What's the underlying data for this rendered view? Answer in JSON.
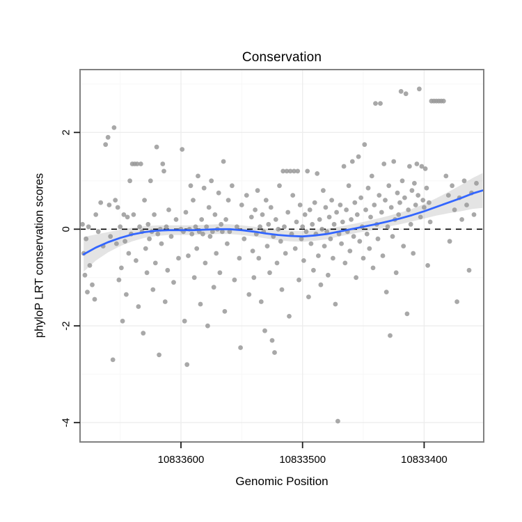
{
  "chart_data": {
    "type": "scatter",
    "title": "Conservation",
    "x_axis": {
      "label": "Genomic Position",
      "ticks": [
        10833600,
        10833500,
        10833400
      ],
      "minor_ticks": [
        10833650,
        10833550,
        10833450
      ],
      "range": [
        10833683,
        10833351
      ],
      "direction": "decreasing-left-to-right"
    },
    "y_axis": {
      "label": "phyloP LRT conservation scores",
      "ticks": [
        2,
        0,
        -2,
        -4
      ],
      "minor_ticks": [
        3,
        1,
        -1,
        -3
      ],
      "range": [
        3.3,
        -4.4
      ]
    },
    "reference_line": {
      "y": 0,
      "style": "dashed",
      "color": "#000000"
    },
    "smooth": {
      "name": "loess-smooth-with-confidence-band",
      "x": [
        10833680,
        10833670,
        10833660,
        10833650,
        10833640,
        10833630,
        10833620,
        10833610,
        10833600,
        10833590,
        10833580,
        10833570,
        10833560,
        10833550,
        10833540,
        10833530,
        10833520,
        10833510,
        10833500,
        10833490,
        10833480,
        10833470,
        10833460,
        10833450,
        10833440,
        10833430,
        10833420,
        10833410,
        10833400,
        10833390,
        10833380,
        10833370,
        10833360,
        10833352
      ],
      "y": [
        -0.52,
        -0.38,
        -0.27,
        -0.18,
        -0.11,
        -0.06,
        -0.03,
        -0.02,
        -0.02,
        -0.02,
        -0.01,
        0.0,
        0.0,
        -0.02,
        -0.05,
        -0.09,
        -0.12,
        -0.14,
        -0.15,
        -0.13,
        -0.1,
        -0.05,
        0.0,
        0.05,
        0.1,
        0.16,
        0.22,
        0.29,
        0.37,
        0.46,
        0.55,
        0.64,
        0.74,
        0.8
      ],
      "ci_half": [
        0.36,
        0.27,
        0.21,
        0.17,
        0.14,
        0.12,
        0.11,
        0.1,
        0.1,
        0.1,
        0.1,
        0.1,
        0.1,
        0.1,
        0.1,
        0.1,
        0.11,
        0.11,
        0.11,
        0.11,
        0.11,
        0.1,
        0.1,
        0.1,
        0.11,
        0.11,
        0.12,
        0.13,
        0.15,
        0.18,
        0.22,
        0.27,
        0.32,
        0.36
      ]
    },
    "points": [
      [
        10833681,
        0.1
      ],
      [
        10833680,
        -0.5
      ],
      [
        10833679,
        -0.95
      ],
      [
        10833678,
        -0.2
      ],
      [
        10833677,
        -1.3
      ],
      [
        10833676,
        0.05
      ],
      [
        10833675,
        -0.75
      ],
      [
        10833673,
        -1.15
      ],
      [
        10833671,
        -1.45
      ],
      [
        10833670,
        0.3
      ],
      [
        10833668,
        -0.05
      ],
      [
        10833666,
        0.55
      ],
      [
        10833664,
        -0.35
      ],
      [
        10833662,
        1.75
      ],
      [
        10833660,
        1.9
      ],
      [
        10833659,
        0.5
      ],
      [
        10833658,
        -0.15
      ],
      [
        10833656,
        -2.7
      ],
      [
        10833655,
        2.1
      ],
      [
        10833654,
        0.6
      ],
      [
        10833653,
        -0.3
      ],
      [
        10833652,
        0.45
      ],
      [
        10833651,
        -1.05
      ],
      [
        10833650,
        0.05
      ],
      [
        10833649,
        -0.8
      ],
      [
        10833648,
        -1.9
      ],
      [
        10833647,
        0.3
      ],
      [
        10833646,
        -0.25
      ],
      [
        10833645,
        -1.35
      ],
      [
        10833644,
        0.25
      ],
      [
        10833643,
        -0.5
      ],
      [
        10833642,
        1.0
      ],
      [
        10833641,
        -0.1
      ],
      [
        10833640,
        1.35
      ],
      [
        10833639,
        0.3
      ],
      [
        10833638,
        1.35
      ],
      [
        10833637,
        -0.65
      ],
      [
        10833636,
        1.35
      ],
      [
        10833635,
        -1.6
      ],
      [
        10833634,
        0.05
      ],
      [
        10833633,
        1.35
      ],
      [
        10833632,
        -0.05
      ],
      [
        10833631,
        -2.15
      ],
      [
        10833630,
        0.6
      ],
      [
        10833629,
        -0.4
      ],
      [
        10833628,
        -0.9
      ],
      [
        10833627,
        0.1
      ],
      [
        10833626,
        -0.2
      ],
      [
        10833625,
        1.0
      ],
      [
        10833624,
        -0.05
      ],
      [
        10833623,
        -1.25
      ],
      [
        10833622,
        0.3
      ],
      [
        10833621,
        -0.7
      ],
      [
        10833620,
        1.7
      ],
      [
        10833619,
        -0.1
      ],
      [
        10833618,
        -2.6
      ],
      [
        10833617,
        0.0
      ],
      [
        10833616,
        -0.3
      ],
      [
        10833615,
        1.35
      ],
      [
        10833614,
        1.2
      ],
      [
        10833613,
        -1.5
      ],
      [
        10833612,
        0.05
      ],
      [
        10833611,
        -0.85
      ],
      [
        10833610,
        0.4
      ],
      [
        10833608,
        -0.15
      ],
      [
        10833606,
        -1.1
      ],
      [
        10833604,
        0.2
      ],
      [
        10833602,
        -0.6
      ],
      [
        10833600,
        0.0
      ],
      [
        10833599,
        1.65
      ],
      [
        10833598,
        -0.05
      ],
      [
        10833597,
        -1.9
      ],
      [
        10833596,
        0.35
      ],
      [
        10833595,
        -2.8
      ],
      [
        10833594,
        -0.55
      ],
      [
        10833593,
        0.0
      ],
      [
        10833592,
        0.9
      ],
      [
        10833591,
        -0.1
      ],
      [
        10833590,
        0.6
      ],
      [
        10833589,
        -1.0
      ],
      [
        10833588,
        0.05
      ],
      [
        10833587,
        -0.4
      ],
      [
        10833586,
        1.1
      ],
      [
        10833585,
        -0.05
      ],
      [
        10833584,
        -1.55
      ],
      [
        10833583,
        0.2
      ],
      [
        10833582,
        -0.1
      ],
      [
        10833581,
        0.85
      ],
      [
        10833580,
        -0.7
      ],
      [
        10833579,
        0.05
      ],
      [
        10833578,
        -2.0
      ],
      [
        10833577,
        0.45
      ],
      [
        10833576,
        -0.15
      ],
      [
        10833575,
        1.0
      ],
      [
        10833574,
        -0.05
      ],
      [
        10833573,
        -1.2
      ],
      [
        10833572,
        0.3
      ],
      [
        10833571,
        -0.5
      ],
      [
        10833570,
        0.0
      ],
      [
        10833569,
        0.75
      ],
      [
        10833568,
        -0.9
      ],
      [
        10833567,
        0.1
      ],
      [
        10833566,
        -0.05
      ],
      [
        10833565,
        1.4
      ],
      [
        10833564,
        -1.7
      ],
      [
        10833563,
        0.2
      ],
      [
        10833562,
        -0.3
      ],
      [
        10833561,
        0.6
      ],
      [
        10833560,
        -0.05
      ],
      [
        10833558,
        0.9
      ],
      [
        10833556,
        -1.05
      ],
      [
        10833554,
        0.05
      ],
      [
        10833552,
        -0.6
      ],
      [
        10833551,
        -2.45
      ],
      [
        10833550,
        0.5
      ],
      [
        10833548,
        -0.2
      ],
      [
        10833546,
        0.7
      ],
      [
        10833544,
        -1.35
      ],
      [
        10833542,
        0.25
      ],
      [
        10833541,
        -0.45
      ],
      [
        10833540,
        -1.0
      ],
      [
        10833539,
        0.4
      ],
      [
        10833538,
        -0.1
      ],
      [
        10833537,
        0.8
      ],
      [
        10833536,
        -0.6
      ],
      [
        10833535,
        0.05
      ],
      [
        10833534,
        -1.5
      ],
      [
        10833533,
        0.3
      ],
      [
        10833532,
        -0.05
      ],
      [
        10833531,
        -2.1
      ],
      [
        10833530,
        0.6
      ],
      [
        10833529,
        -0.35
      ],
      [
        10833528,
        0.1
      ],
      [
        10833527,
        -0.9
      ],
      [
        10833526,
        0.45
      ],
      [
        10833525,
        -2.3
      ],
      [
        10833524,
        -0.15
      ],
      [
        10833523,
        -2.55
      ],
      [
        10833522,
        0.2
      ],
      [
        10833521,
        -0.7
      ],
      [
        10833520,
        0.0
      ],
      [
        10833519,
        0.9
      ],
      [
        10833518,
        -0.25
      ],
      [
        10833517,
        -1.25
      ],
      [
        10833516,
        1.2
      ],
      [
        10833515,
        0.05
      ],
      [
        10833514,
        -0.5
      ],
      [
        10833513,
        1.2
      ],
      [
        10833512,
        0.35
      ],
      [
        10833511,
        -1.8
      ],
      [
        10833510,
        1.2
      ],
      [
        10833509,
        -0.1
      ],
      [
        10833508,
        0.7
      ],
      [
        10833507,
        1.2
      ],
      [
        10833506,
        -0.4
      ],
      [
        10833505,
        0.15
      ],
      [
        10833504,
        1.2
      ],
      [
        10833503,
        -1.05
      ],
      [
        10833502,
        0.5
      ],
      [
        10833501,
        -0.2
      ],
      [
        10833500,
        0.05
      ],
      [
        10833499,
        -0.65
      ],
      [
        10833498,
        0.3
      ],
      [
        10833497,
        -0.05
      ],
      [
        10833496,
        1.2
      ],
      [
        10833495,
        -1.4
      ],
      [
        10833494,
        0.4
      ],
      [
        10833493,
        -0.3
      ],
      [
        10833492,
        0.1
      ],
      [
        10833491,
        -0.85
      ],
      [
        10833490,
        0.55
      ],
      [
        10833489,
        -0.1
      ],
      [
        10833488,
        1.15
      ],
      [
        10833487,
        -0.55
      ],
      [
        10833486,
        0.2
      ],
      [
        10833485,
        -1.15
      ],
      [
        10833484,
        0.0
      ],
      [
        10833483,
        0.8
      ],
      [
        10833482,
        -0.35
      ],
      [
        10833481,
        0.45
      ],
      [
        10833480,
        -0.05
      ],
      [
        10833479,
        -0.95
      ],
      [
        10833478,
        0.25
      ],
      [
        10833477,
        -0.2
      ],
      [
        10833476,
        0.6
      ],
      [
        10833475,
        -0.6
      ],
      [
        10833474,
        0.1
      ],
      [
        10833473,
        -1.55
      ],
      [
        10833472,
        0.35
      ],
      [
        10833471,
        -3.97
      ],
      [
        10833470,
        -0.1
      ],
      [
        10833469,
        0.5
      ],
      [
        10833468,
        -0.3
      ],
      [
        10833467,
        0.15
      ],
      [
        10833466,
        1.3
      ],
      [
        10833465,
        -0.7
      ],
      [
        10833464,
        0.4
      ],
      [
        10833463,
        -0.05
      ],
      [
        10833462,
        0.9
      ],
      [
        10833461,
        -0.45
      ],
      [
        10833460,
        0.2
      ],
      [
        10833459,
        1.4
      ],
      [
        10833458,
        -0.15
      ],
      [
        10833457,
        0.55
      ],
      [
        10833456,
        -1.0
      ],
      [
        10833455,
        0.3
      ],
      [
        10833454,
        1.5
      ],
      [
        10833453,
        -0.25
      ],
      [
        10833452,
        0.65
      ],
      [
        10833451,
        0.05
      ],
      [
        10833450,
        -0.6
      ],
      [
        10833449,
        1.75
      ],
      [
        10833448,
        0.4
      ],
      [
        10833447,
        -0.1
      ],
      [
        10833446,
        0.85
      ],
      [
        10833445,
        -0.4
      ],
      [
        10833444,
        0.25
      ],
      [
        10833443,
        1.1
      ],
      [
        10833442,
        -0.8
      ],
      [
        10833441,
        0.5
      ],
      [
        10833440,
        2.6
      ],
      [
        10833439,
        0.1
      ],
      [
        10833438,
        -0.2
      ],
      [
        10833437,
        0.7
      ],
      [
        10833436,
        2.6
      ],
      [
        10833435,
        0.35
      ],
      [
        10833434,
        -0.55
      ],
      [
        10833433,
        1.35
      ],
      [
        10833432,
        0.6
      ],
      [
        10833431,
        -1.3
      ],
      [
        10833430,
        0.05
      ],
      [
        10833429,
        0.9
      ],
      [
        10833428,
        -2.2
      ],
      [
        10833427,
        0.45
      ],
      [
        10833426,
        -0.15
      ],
      [
        10833425,
        1.4
      ],
      [
        10833424,
        0.2
      ],
      [
        10833423,
        -0.9
      ],
      [
        10833422,
        0.75
      ],
      [
        10833421,
        0.3
      ],
      [
        10833420,
        0.55
      ],
      [
        10833419,
        2.85
      ],
      [
        10833418,
        1.0
      ],
      [
        10833417,
        -0.35
      ],
      [
        10833416,
        0.65
      ],
      [
        10833415,
        2.8
      ],
      [
        10833414,
        -1.75
      ],
      [
        10833413,
        0.4
      ],
      [
        10833412,
        1.3
      ],
      [
        10833411,
        0.1
      ],
      [
        10833410,
        0.8
      ],
      [
        10833409,
        -0.5
      ],
      [
        10833408,
        0.95
      ],
      [
        10833407,
        0.5
      ],
      [
        10833406,
        1.35
      ],
      [
        10833405,
        0.7
      ],
      [
        10833404,
        2.9
      ],
      [
        10833403,
        0.25
      ],
      [
        10833402,
        1.3
      ],
      [
        10833401,
        0.6
      ],
      [
        10833400,
        0.45
      ],
      [
        10833399,
        1.25
      ],
      [
        10833398,
        0.85
      ],
      [
        10833397,
        -0.75
      ],
      [
        10833396,
        0.55
      ],
      [
        10833395,
        0.15
      ],
      [
        10833394,
        2.65
      ],
      [
        10833392,
        2.65
      ],
      [
        10833390,
        2.65
      ],
      [
        10833388,
        2.65
      ],
      [
        10833386,
        2.65
      ],
      [
        10833384,
        2.65
      ],
      [
        10833382,
        1.1
      ],
      [
        10833380,
        0.7
      ],
      [
        10833379,
        -0.25
      ],
      [
        10833377,
        0.9
      ],
      [
        10833375,
        0.4
      ],
      [
        10833373,
        -1.5
      ],
      [
        10833371,
        0.65
      ],
      [
        10833369,
        0.2
      ],
      [
        10833367,
        1.0
      ],
      [
        10833365,
        0.5
      ],
      [
        10833363,
        -0.85
      ],
      [
        10833361,
        0.75
      ],
      [
        10833359,
        0.3
      ],
      [
        10833357,
        0.95
      ]
    ],
    "style": {
      "point_color": "#999999",
      "point_radius": 3.4,
      "point_opacity": 0.85,
      "smooth_color": "#3366ff",
      "ribbon_color": "#9a9a9a",
      "ribbon_opacity": 0.27,
      "panel_bg": "#ffffff",
      "panel_border": "#808080",
      "grid_major": "#ededed",
      "grid_minor": "#f7f7f7",
      "tick_color": "#1a1a1a",
      "tick_label_color": "#000000"
    },
    "legend": "none",
    "grid": "on"
  }
}
